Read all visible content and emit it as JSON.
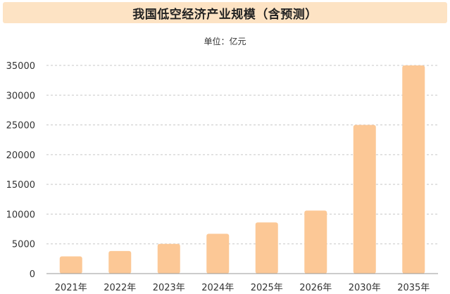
{
  "chart_data": {
    "type": "bar",
    "title": "我国低空经济产业规模（含预测）",
    "subtitle": "单位：亿元",
    "categories": [
      "2021年",
      "2022年",
      "2023年",
      "2024年",
      "2025年",
      "2026年",
      "2030年",
      "2035年"
    ],
    "values": [
      2900,
      3800,
      5000,
      6700,
      8600,
      10600,
      25000,
      35000
    ],
    "ylim": [
      0,
      35000
    ],
    "yticks": [
      0,
      5000,
      10000,
      15000,
      20000,
      25000,
      30000,
      35000
    ],
    "grid": true,
    "colors": {
      "bar": "#fcc896",
      "grid": "#c8c8c8",
      "axis": "#999999",
      "title_bg": "#fde3c4"
    }
  }
}
